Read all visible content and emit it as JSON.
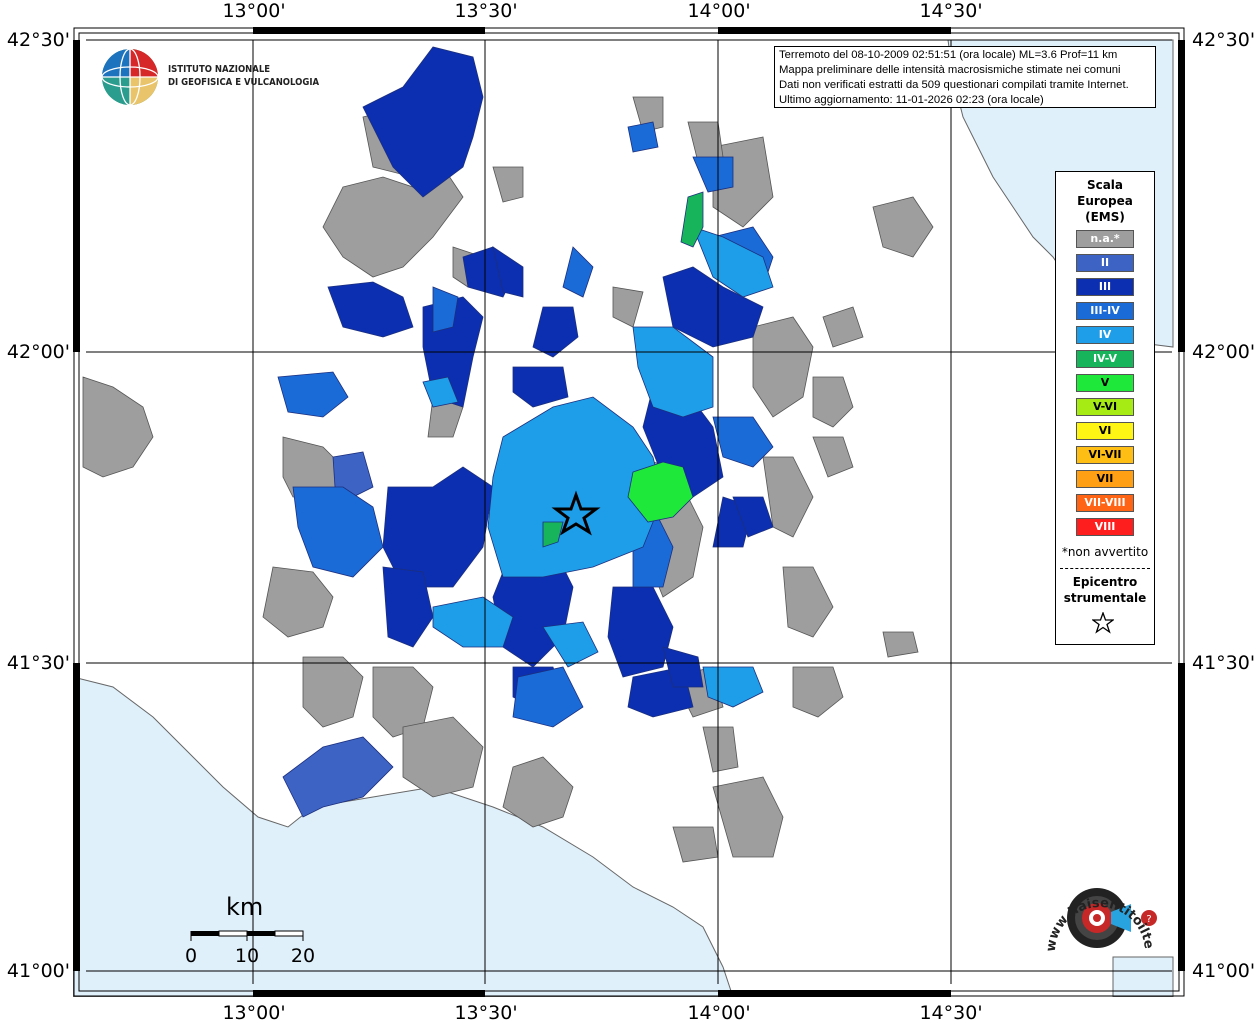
{
  "map": {
    "lon_ticks": [
      "13°00'",
      "13°30'",
      "14°00'",
      "14°30'"
    ],
    "lat_ticks": [
      "42°30'",
      "42°00'",
      "41°30'",
      "41°00'"
    ],
    "epicenter_name": "epicentre-star"
  },
  "info": {
    "line1": "Terremoto del 08-10-2009 02:51:51 (ora locale) ML=3.6 Prof=11 km",
    "line2": "Mappa preliminare delle intensità macrosismiche stimate nei comuni",
    "line3": "Dati non verificati estratti da 509 questionari compilati tramite Internet.",
    "line4": "Ultimo aggiornamento: 11-01-2026 02:23 (ora locale)"
  },
  "ingv": {
    "line1": "ISTITUTO NAZIONALE",
    "line2": "DI GEOFISICA E VULCANOLOGIA"
  },
  "legend": {
    "title_line1": "Scala",
    "title_line2": "Europea",
    "title_line3": "(EMS)",
    "items": [
      {
        "label": "n.a.*",
        "color": "#9e9e9e",
        "text_color": "#ffffff"
      },
      {
        "label": "II",
        "color": "#3d63c4",
        "text_color": "#ffffff"
      },
      {
        "label": "III",
        "color": "#0b2fb0",
        "text_color": "#ffffff"
      },
      {
        "label": "III-IV",
        "color": "#1a6bd8",
        "text_color": "#ffffff"
      },
      {
        "label": "IV",
        "color": "#1e9ee8",
        "text_color": "#ffffff"
      },
      {
        "label": "IV-V",
        "color": "#18b45c",
        "text_color": "#ffffff"
      },
      {
        "label": "V",
        "color": "#1ee83a",
        "text_color": "#000000"
      },
      {
        "label": "V-VI",
        "color": "#a6ec14",
        "text_color": "#000000"
      },
      {
        "label": "VI",
        "color": "#fff514",
        "text_color": "#000000"
      },
      {
        "label": "VI-VII",
        "color": "#ffbe14",
        "text_color": "#000000"
      },
      {
        "label": "VII",
        "color": "#ffa014",
        "text_color": "#000000"
      },
      {
        "label": "VII-VIII",
        "color": "#ff6414",
        "text_color": "#ffffff"
      },
      {
        "label": "VIII",
        "color": "#ff1e1e",
        "text_color": "#ffffff"
      }
    ],
    "note": "*non avvertito",
    "epi_line1": "Epicentro",
    "epi_line2": "strumentale"
  },
  "scale": {
    "unit": "km",
    "labels": [
      "0",
      "10",
      "20"
    ]
  },
  "branding": {
    "site_text": "www.haisentitoilterremoto.it"
  },
  "colors": {
    "sea": "#dff0fb",
    "land": "#ffffff",
    "na": "#9e9e9e",
    "ii": "#3d63c4",
    "iii": "#0b2fb0",
    "iii_iv": "#1a6bd8",
    "iv": "#1e9ee8",
    "iv_v": "#18b45c",
    "v": "#1ee83a"
  }
}
